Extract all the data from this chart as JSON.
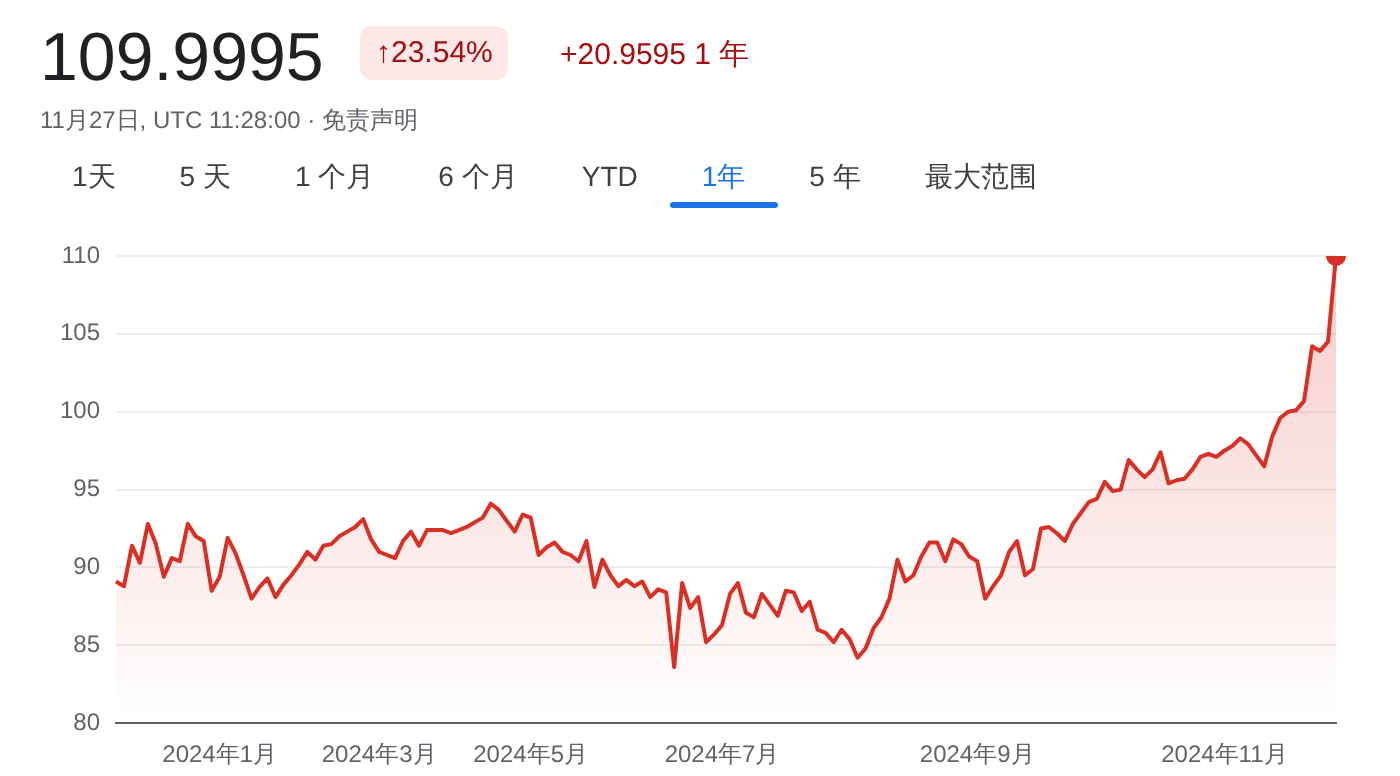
{
  "chart_data": {
    "type": "area",
    "title": "109.9995",
    "subtitle": "11月27日, UTC 11:28:00 · 免责声明",
    "annotations": [
      "↑23.54%",
      "+20.9595 1 年",
      "1天",
      "5 天",
      "1 个月",
      "6 个月",
      "YTD",
      "1年",
      "5 年",
      "最大范围"
    ],
    "categories": [
      null,
      null,
      null,
      null,
      null,
      null,
      null,
      null,
      null,
      null,
      null,
      null,
      null,
      "2024年1月",
      null,
      null,
      null,
      null,
      null,
      null,
      null,
      null,
      null,
      null,
      null,
      null,
      null,
      null,
      null,
      null,
      null,
      null,
      null,
      "2024年3月",
      null,
      null,
      null,
      null,
      null,
      null,
      null,
      null,
      null,
      null,
      null,
      null,
      null,
      null,
      null,
      null,
      null,
      null,
      "2024年5月",
      null,
      null,
      null,
      null,
      null,
      null,
      null,
      null,
      null,
      null,
      null,
      null,
      null,
      null,
      null,
      null,
      null,
      null,
      null,
      null,
      null,
      null,
      null,
      "2024年7月",
      null,
      null,
      null,
      null,
      null,
      null,
      null,
      null,
      null,
      null,
      null,
      null,
      null,
      null,
      null,
      null,
      null,
      null,
      null,
      null,
      null,
      null,
      null,
      null,
      null,
      null,
      null,
      null,
      null,
      null,
      null,
      "2024年9月",
      null,
      null,
      null,
      null,
      null,
      null,
      null,
      null,
      null,
      null,
      null,
      null,
      null,
      null,
      null,
      null,
      null,
      null,
      null,
      null,
      null,
      null,
      null,
      null,
      null,
      null,
      null,
      null,
      null,
      null,
      "2024年11月",
      null,
      null,
      null,
      null,
      null,
      null,
      null,
      null,
      null,
      null,
      null,
      null,
      null,
      null
    ],
    "series": [
      {
        "color": "#d93025",
        "values": [
          89.1,
          88.8,
          91.4,
          90.3,
          92.8,
          91.5,
          89.4,
          90.6,
          90.4,
          92.8,
          92.0,
          91.7,
          88.5,
          89.4,
          91.9,
          90.9,
          89.5,
          88.0,
          88.75,
          89.3,
          88.1,
          88.9,
          89.5,
          90.2,
          91.0,
          90.5,
          91.4,
          91.5,
          92.0,
          92.3,
          92.6,
          93.1,
          91.8,
          91.0,
          90.8,
          90.6,
          91.7,
          92.3,
          91.4,
          92.4,
          92.4,
          92.4,
          92.2,
          92.4,
          92.6,
          92.9,
          93.2,
          94.1,
          93.7,
          93.0,
          92.3,
          93.4,
          93.2,
          90.8,
          91.3,
          91.6,
          91.0,
          90.8,
          90.4,
          91.7,
          88.75,
          90.5,
          89.5,
          88.8,
          89.2,
          88.8,
          89.1,
          88.1,
          88.6,
          88.4,
          83.6,
          89.0,
          87.4,
          88.1,
          85.2,
          85.7,
          86.3,
          88.3,
          89.0,
          87.1,
          86.8,
          88.3,
          87.6,
          86.9,
          88.5,
          88.4,
          87.2,
          87.8,
          86.0,
          85.8,
          85.2,
          86.0,
          85.4,
          84.2,
          84.8,
          86.1,
          86.8,
          88.0,
          90.5,
          89.1,
          89.5,
          90.7,
          91.6,
          91.6,
          90.4,
          91.8,
          91.5,
          90.7,
          90.4,
          88.0,
          88.8,
          89.5,
          91.0,
          91.7,
          89.5,
          89.9,
          92.5,
          92.6,
          92.2,
          91.7,
          92.8,
          93.5,
          94.2,
          94.4,
          95.5,
          94.9,
          95.0,
          96.9,
          96.3,
          95.8,
          96.3,
          97.4,
          95.4,
          95.6,
          95.7,
          96.3,
          97.1,
          97.3,
          97.1,
          97.5,
          97.8,
          98.3,
          97.9,
          97.2,
          96.5,
          98.4,
          99.6,
          100.0,
          100.1,
          100.7,
          104.2,
          103.9,
          104.5,
          109.9995
        ]
      }
    ],
    "ylim": [
      80,
      110
    ],
    "yticks": [
      80,
      85,
      90,
      95,
      100,
      105,
      110
    ],
    "grid": "y",
    "legend": false,
    "marker": "none",
    "line_style": "solid"
  }
}
